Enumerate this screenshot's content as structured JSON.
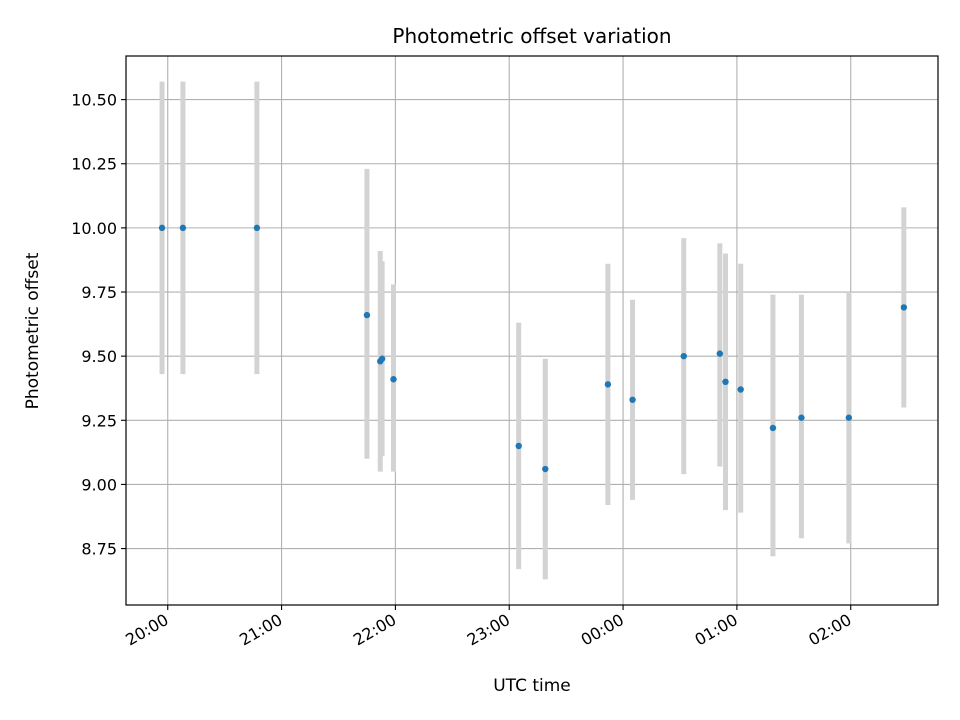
{
  "chart_data": {
    "type": "scatter",
    "title": "Photometric offset variation",
    "xlabel": "UTC time",
    "ylabel": "Photometric offset",
    "grid": true,
    "x_is_time": true,
    "xlim": [
      "19:38",
      "02:46"
    ],
    "ylim": [
      8.53,
      10.67
    ],
    "x_ticks": [
      "20:00",
      "21:00",
      "22:00",
      "23:00",
      "00:00",
      "01:00",
      "02:00"
    ],
    "y_ticks": [
      "8.75",
      "9.00",
      "9.25",
      "9.50",
      "9.75",
      "10.00",
      "10.25",
      "10.50"
    ],
    "point_color": "#1f77b4",
    "errorbar_color": "#d3d3d3",
    "points": [
      {
        "x": "19:57",
        "y": 10.0,
        "lo": 9.43,
        "hi": 10.57
      },
      {
        "x": "20:08",
        "y": 10.0,
        "lo": 9.43,
        "hi": 10.57
      },
      {
        "x": "20:47",
        "y": 10.0,
        "lo": 9.43,
        "hi": 10.57
      },
      {
        "x": "21:45",
        "y": 9.66,
        "lo": 9.1,
        "hi": 10.23
      },
      {
        "x": "21:52",
        "y": 9.48,
        "lo": 9.05,
        "hi": 9.91
      },
      {
        "x": "21:53",
        "y": 9.49,
        "lo": 9.11,
        "hi": 9.87
      },
      {
        "x": "21:59",
        "y": 9.41,
        "lo": 9.05,
        "hi": 9.78
      },
      {
        "x": "23:05",
        "y": 9.15,
        "lo": 8.67,
        "hi": 9.63
      },
      {
        "x": "23:19",
        "y": 9.06,
        "lo": 8.63,
        "hi": 9.49
      },
      {
        "x": "23:52",
        "y": 9.39,
        "lo": 8.92,
        "hi": 9.86
      },
      {
        "x": "00:05",
        "y": 9.33,
        "lo": 8.94,
        "hi": 9.72
      },
      {
        "x": "00:32",
        "y": 9.5,
        "lo": 9.04,
        "hi": 9.96
      },
      {
        "x": "00:51",
        "y": 9.51,
        "lo": 9.07,
        "hi": 9.94
      },
      {
        "x": "00:54",
        "y": 9.4,
        "lo": 8.9,
        "hi": 9.9
      },
      {
        "x": "01:02",
        "y": 9.37,
        "lo": 8.89,
        "hi": 9.86
      },
      {
        "x": "01:19",
        "y": 9.22,
        "lo": 8.72,
        "hi": 9.74
      },
      {
        "x": "01:34",
        "y": 9.26,
        "lo": 8.79,
        "hi": 9.74
      },
      {
        "x": "01:59",
        "y": 9.26,
        "lo": 8.77,
        "hi": 9.75
      },
      {
        "x": "02:28",
        "y": 9.69,
        "lo": 9.3,
        "hi": 10.08
      }
    ]
  }
}
